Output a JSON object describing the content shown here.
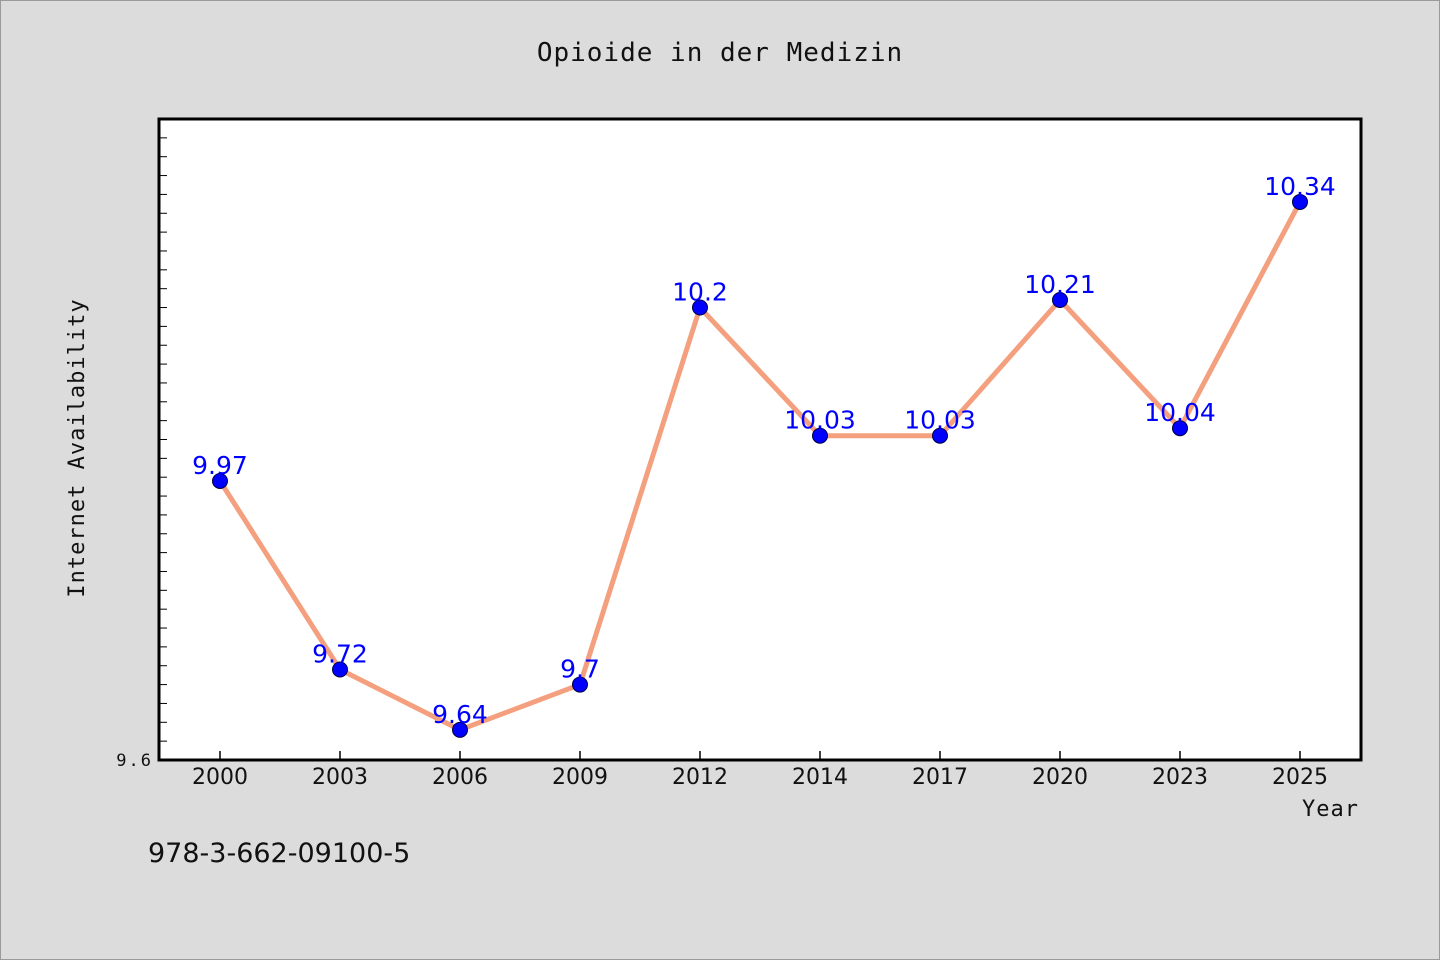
{
  "chart_data": {
    "type": "line",
    "title": "Opioide in der Medizin",
    "xlabel": "Year",
    "ylabel": "Internet Availability",
    "categories": [
      "2000",
      "2003",
      "2006",
      "2009",
      "2012",
      "2014",
      "2017",
      "2020",
      "2023",
      "2025"
    ],
    "series": [
      {
        "values": [
          9.97,
          9.72,
          9.64,
          9.7,
          10.2,
          10.03,
          10.03,
          10.21,
          10.04,
          10.34
        ],
        "data_labels": [
          "9.97",
          "9.72",
          "9.64",
          "9.7",
          "10.2",
          "10.03",
          "10.03",
          "10.21",
          "10.04",
          "10.34"
        ],
        "line_color": "#f4a07f",
        "marker_color": "#0000ff"
      }
    ],
    "ylim": [
      9.6,
      10.45
    ],
    "yticks": [
      {
        "value": 9.6,
        "label": "9.6"
      }
    ],
    "grid": false,
    "legend": false,
    "annotation": "978-3-662-09100-5"
  }
}
